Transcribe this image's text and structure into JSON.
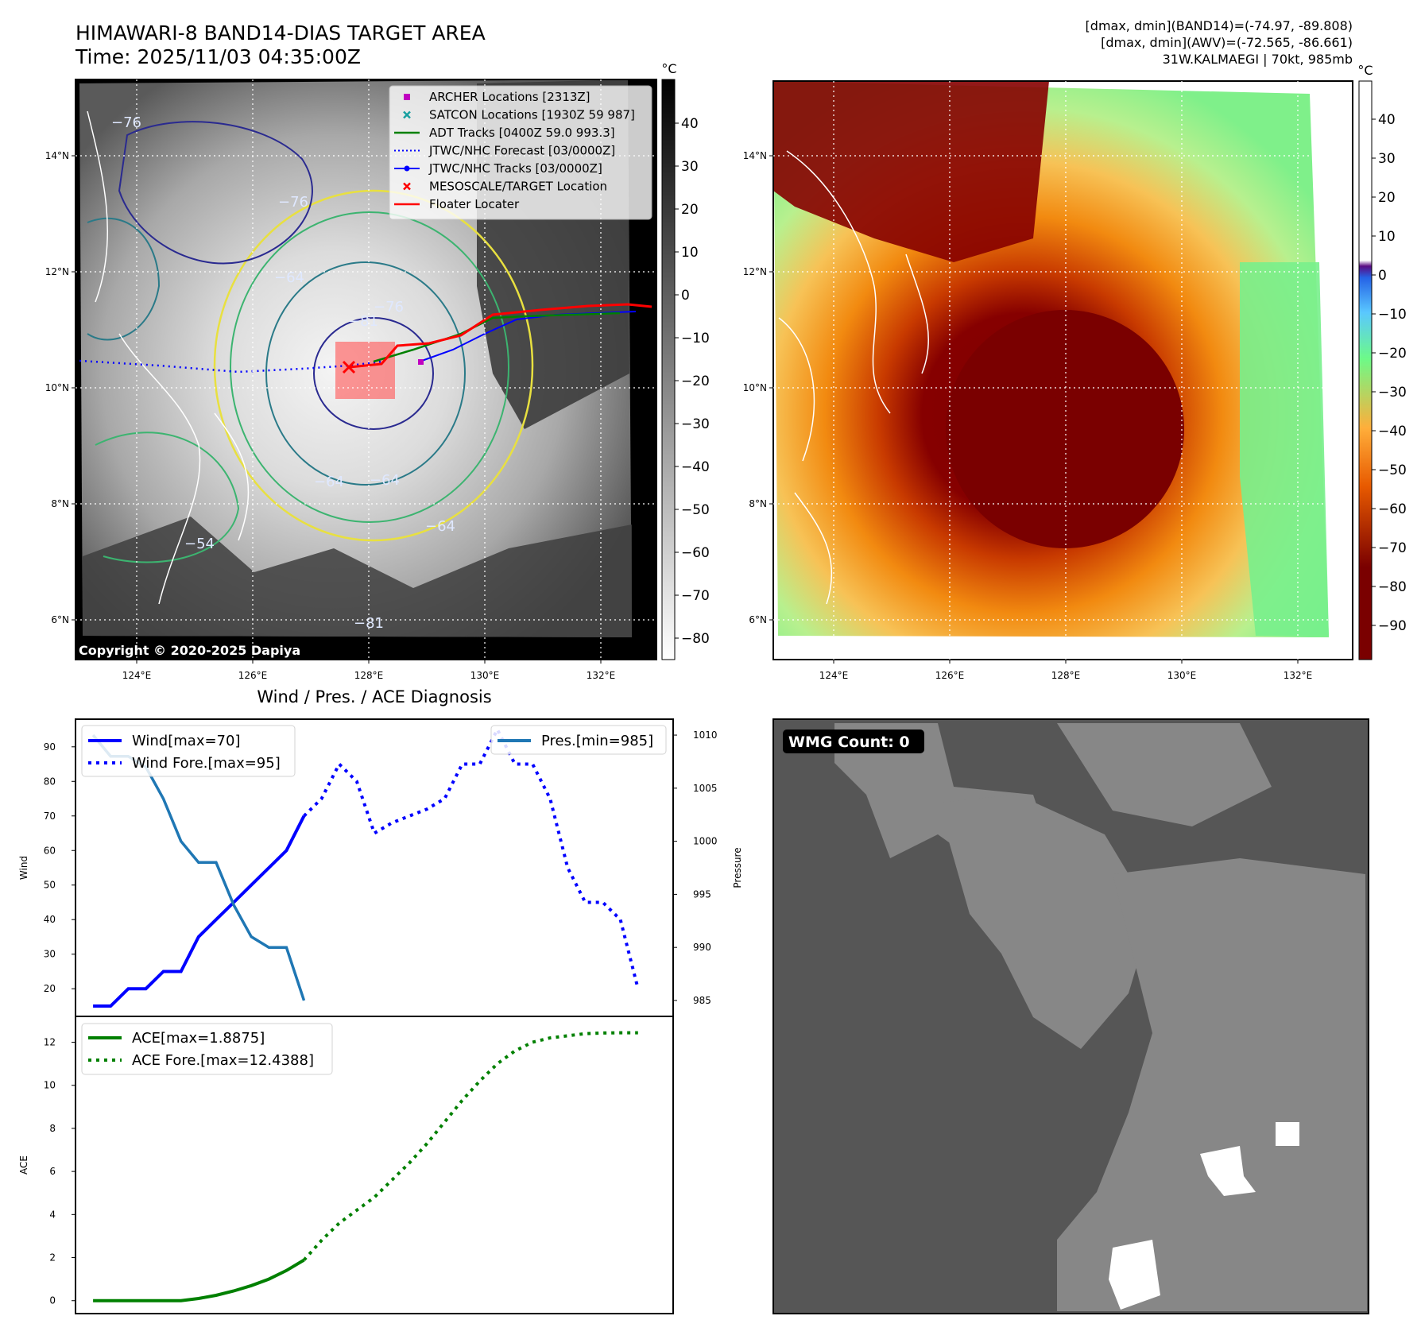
{
  "header": {
    "title_line1": "HIMAWARI-8 BAND14-DIAS TARGET AREA",
    "title_line2": "Time: 2025/11/03 04:35:00Z",
    "info_line1": "[dmax, dmin](BAND14)=(-74.97, -89.808)",
    "info_line2": "[dmax, dmin](AWV)=(-72.565, -86.661)",
    "info_line3": "31W.KALMAEGI | 70kt, 985mb"
  },
  "map_common": {
    "lon_ticks": [
      "124°E",
      "126°E",
      "128°E",
      "130°E",
      "132°E"
    ],
    "lat_ticks": [
      "14°N",
      "12°N",
      "10°N",
      "8°N",
      "6°N"
    ],
    "colorbar_unit": "°C"
  },
  "ir_panel": {
    "colorbar_ticks": [
      "40",
      "30",
      "20",
      "10",
      "0",
      "−10",
      "−20",
      "−30",
      "−40",
      "−50",
      "−60",
      "−70",
      "−80"
    ],
    "copyright": "Copyright © 2020-2025 Dapiya",
    "contour_labels": [
      "−76",
      "−64",
      "−76",
      "−81",
      "−76",
      "−64",
      "−54",
      "−64",
      "−64",
      "−81"
    ],
    "legend": [
      {
        "label": "ARCHER Locations [2313Z]",
        "color": "#c000c0",
        "marker": "square"
      },
      {
        "label": "SATCON Locations [1930Z 59 987]",
        "color": "#18a0a0",
        "marker": "x"
      },
      {
        "label": "ADT Tracks [0400Z 59.0 993.3]",
        "color": "#008000",
        "marker": "line"
      },
      {
        "label": "JTWC/NHC Forecast [03/0000Z]",
        "color": "#0000ff",
        "marker": "dotted"
      },
      {
        "label": "JTWC/NHC Tracks [03/0000Z]",
        "color": "#0000ff",
        "marker": "line-dot"
      },
      {
        "label": "MESOSCALE/TARGET Location",
        "color": "#ff0000",
        "marker": "x"
      },
      {
        "label": "Floater Locater",
        "color": "#ff0000",
        "marker": "line"
      }
    ]
  },
  "awv_panel": {
    "colorbar_ticks": [
      "40",
      "30",
      "20",
      "10",
      "0",
      "−10",
      "−20",
      "−30",
      "−40",
      "−50",
      "−60",
      "−70",
      "−80",
      "−90"
    ]
  },
  "wind_panel": {
    "title": "Wind / Pres. / ACE Diagnosis",
    "ylabel_left": "Wind",
    "ylabel_right": "Pressure",
    "legend_wind": "Wind[max=70]",
    "legend_wind_fore": "Wind Fore.[max=95]",
    "legend_pres": "Pres.[min=985]"
  },
  "ace_panel": {
    "ylabel": "ACE",
    "legend_ace": "ACE[max=1.8875]",
    "legend_ace_fore": "ACE Fore.[max=12.4388]"
  },
  "wmg_panel": {
    "label": "WMG Count: 0"
  },
  "chart_data": [
    {
      "type": "line",
      "title": "Wind / Pres. / ACE Diagnosis",
      "ylabel": "Wind",
      "y2label": "Pressure",
      "xlim": [
        -1,
        33
      ],
      "ylim": [
        12,
        98
      ],
      "y2lim": [
        983.5,
        1011.5
      ],
      "yticks": [
        20,
        30,
        40,
        50,
        60,
        70,
        80,
        90
      ],
      "y2ticks": [
        985,
        990,
        995,
        1000,
        1005,
        1010
      ],
      "series": [
        {
          "name": "Wind[max=70]",
          "axis": "left",
          "style": "solid",
          "color": "#0000ff",
          "x": [
            0,
            1,
            2,
            3,
            4,
            5,
            6,
            7,
            8,
            9,
            10,
            11,
            12
          ],
          "values": [
            15,
            15,
            20,
            20,
            25,
            25,
            35,
            40,
            45,
            50,
            55,
            60,
            70
          ]
        },
        {
          "name": "Wind Fore.[max=95]",
          "axis": "left",
          "style": "dotted",
          "color": "#0000ff",
          "x": [
            12,
            13,
            14,
            15,
            16,
            17,
            18,
            19,
            20,
            21,
            22,
            23,
            24,
            25,
            26,
            27,
            28,
            29,
            30,
            31
          ],
          "values": [
            70,
            75,
            85,
            80,
            65,
            68,
            70,
            72,
            75,
            85,
            85,
            95,
            85,
            85,
            75,
            55,
            45,
            45,
            40,
            20
          ]
        },
        {
          "name": "Pres.[min=985]",
          "axis": "right",
          "style": "solid",
          "color": "#1f77b4",
          "x": [
            0,
            1,
            2,
            3,
            4,
            5,
            6,
            7,
            8,
            9,
            10,
            11,
            12
          ],
          "values": [
            1010,
            1008,
            1008,
            1007,
            1004,
            1000,
            998,
            998,
            994,
            991,
            990,
            990,
            985
          ]
        }
      ],
      "legend": [
        "Wind[max=70]",
        "Wind Fore.[max=95]",
        "Pres.[min=985]"
      ]
    },
    {
      "type": "line",
      "ylabel": "ACE",
      "xlim": [
        -1,
        33
      ],
      "ylim": [
        -0.6,
        13.2
      ],
      "yticks": [
        0,
        2,
        4,
        6,
        8,
        10,
        12
      ],
      "series": [
        {
          "name": "ACE[max=1.8875]",
          "style": "solid",
          "color": "#008000",
          "x": [
            0,
            1,
            2,
            3,
            4,
            5,
            6,
            7,
            8,
            9,
            10,
            11,
            12
          ],
          "values": [
            0,
            0,
            0,
            0,
            0,
            0,
            0.1,
            0.25,
            0.45,
            0.7,
            1.0,
            1.4,
            1.8875
          ]
        },
        {
          "name": "ACE Fore.[max=12.4388]",
          "style": "dotted",
          "color": "#008000",
          "x": [
            12,
            13,
            14,
            15,
            16,
            17,
            18,
            19,
            20,
            21,
            22,
            23,
            24,
            25,
            26,
            27,
            28,
            29,
            30,
            31
          ],
          "values": [
            1.8875,
            2.8,
            3.6,
            4.2,
            4.8,
            5.6,
            6.4,
            7.3,
            8.3,
            9.3,
            10.2,
            11.0,
            11.6,
            12.0,
            12.2,
            12.3,
            12.4,
            12.43,
            12.44,
            12.4388
          ]
        }
      ],
      "legend": [
        "ACE[max=1.8875]",
        "ACE Fore.[max=12.4388]"
      ]
    }
  ]
}
